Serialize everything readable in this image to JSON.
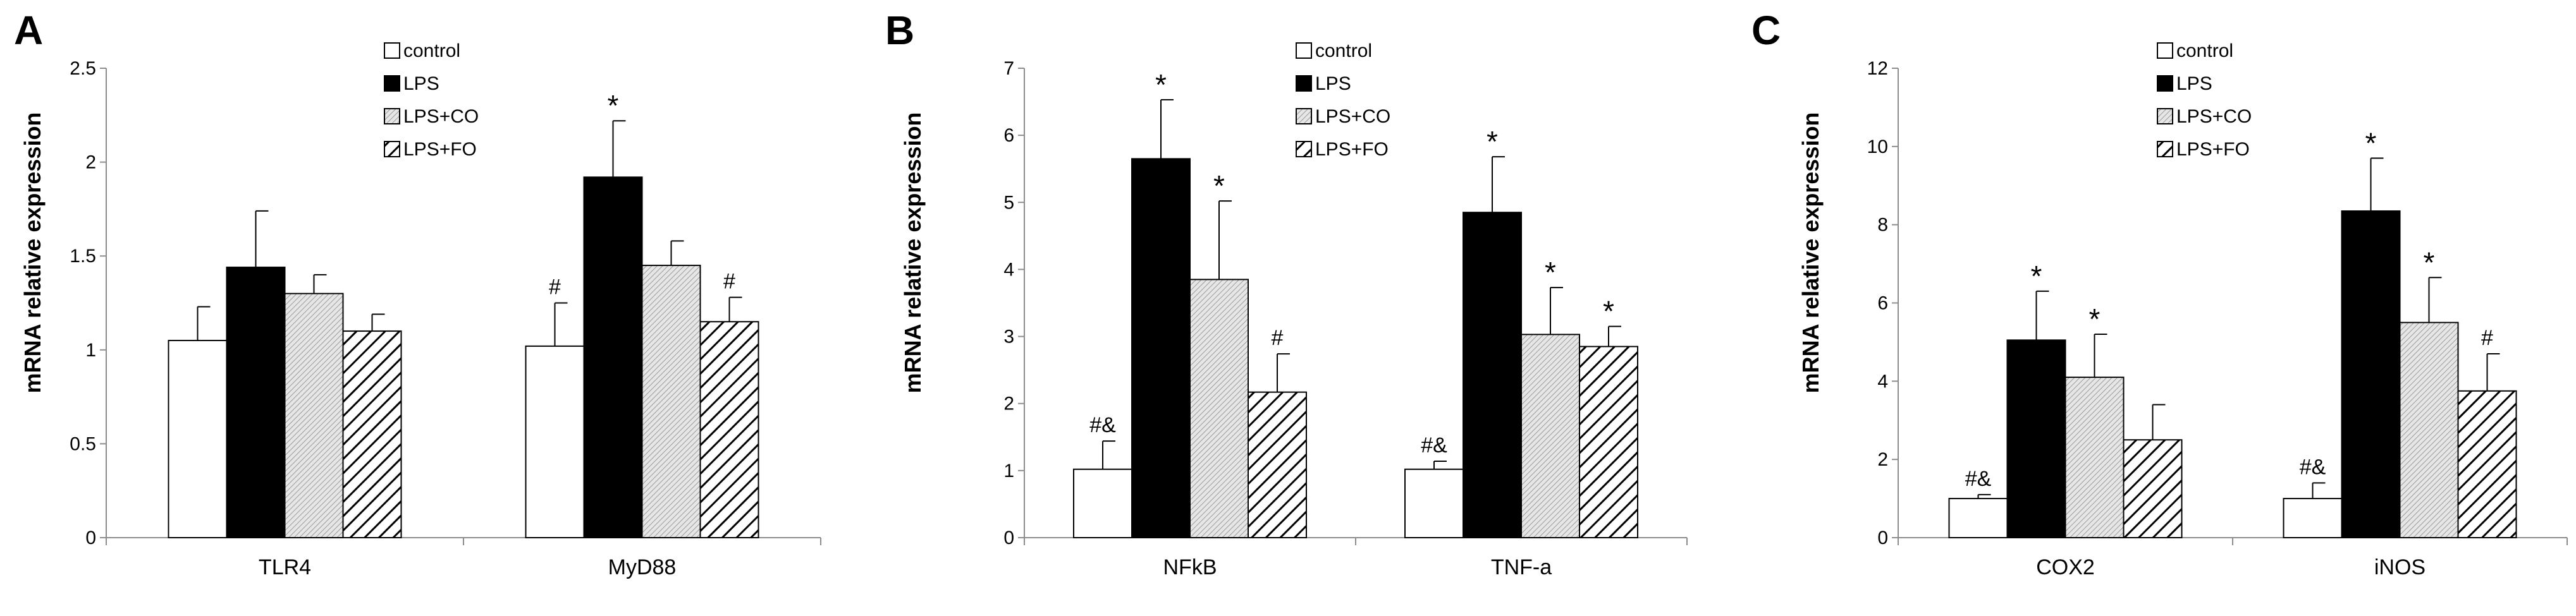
{
  "figure": {
    "y_axis_title": "mRNA relative expression"
  },
  "colors": {
    "control": "#ffffff",
    "LPS": "#000000",
    "LPS+CO": "#d0d0d0",
    "LPS+FO": "#ffffff",
    "axis": "#8c8c8c",
    "stroke": "#000000"
  },
  "legend": [
    "control",
    "LPS",
    "LPS+CO",
    "LPS+FO"
  ],
  "chart_data": [
    {
      "panel": "A",
      "type": "bar",
      "ylabel": "mRNA relative expression",
      "ylim": [
        0,
        2.5
      ],
      "yticks": [
        "0",
        "0.5",
        "1",
        "1.5",
        "2",
        "2.5"
      ],
      "categories": [
        "TLR4",
        "MyD88"
      ],
      "series": [
        {
          "name": "control",
          "values": [
            1.05,
            1.02
          ],
          "errors": [
            0.18,
            0.23
          ],
          "annotations": [
            "",
            "#"
          ]
        },
        {
          "name": "LPS",
          "values": [
            1.44,
            1.92
          ],
          "errors": [
            0.3,
            0.3
          ],
          "annotations": [
            "",
            "*"
          ]
        },
        {
          "name": "LPS+CO",
          "values": [
            1.3,
            1.45
          ],
          "errors": [
            0.1,
            0.13
          ],
          "annotations": [
            "",
            ""
          ]
        },
        {
          "name": "LPS+FO",
          "values": [
            1.1,
            1.15
          ],
          "errors": [
            0.09,
            0.13
          ],
          "annotations": [
            "",
            "#"
          ]
        }
      ]
    },
    {
      "panel": "B",
      "type": "bar",
      "ylabel": "mRNA relative expression",
      "ylim": [
        0,
        7
      ],
      "yticks": [
        "0",
        "1",
        "2",
        "3",
        "4",
        "5",
        "6",
        "7"
      ],
      "categories": [
        "NFkB",
        "TNF-a"
      ],
      "series": [
        {
          "name": "control",
          "values": [
            1.02,
            1.02
          ],
          "errors": [
            0.42,
            0.12
          ],
          "annotations": [
            "#&",
            "#&"
          ]
        },
        {
          "name": "LPS",
          "values": [
            5.65,
            4.85
          ],
          "errors": [
            0.88,
            0.83
          ],
          "annotations": [
            "*",
            "*"
          ]
        },
        {
          "name": "LPS+CO",
          "values": [
            3.85,
            3.03
          ],
          "errors": [
            1.17,
            0.7
          ],
          "annotations": [
            "*",
            "*"
          ]
        },
        {
          "name": "LPS+FO",
          "values": [
            2.17,
            2.85
          ],
          "errors": [
            0.57,
            0.3
          ],
          "annotations": [
            "#",
            "*"
          ]
        }
      ]
    },
    {
      "panel": "C",
      "type": "bar",
      "ylabel": "mRNA relative expression",
      "ylim": [
        0,
        12
      ],
      "yticks": [
        "0",
        "2",
        "4",
        "6",
        "8",
        "10",
        "12"
      ],
      "categories": [
        "COX2",
        "iNOS"
      ],
      "series": [
        {
          "name": "control",
          "values": [
            1.0,
            1.0
          ],
          "errors": [
            0.1,
            0.4
          ],
          "annotations": [
            "#&",
            "#&"
          ]
        },
        {
          "name": "LPS",
          "values": [
            5.05,
            8.35
          ],
          "errors": [
            1.25,
            1.35
          ],
          "annotations": [
            "*",
            "*"
          ]
        },
        {
          "name": "LPS+CO",
          "values": [
            4.1,
            5.5
          ],
          "errors": [
            1.1,
            1.15
          ],
          "annotations": [
            "*",
            "*"
          ]
        },
        {
          "name": "LPS+FO",
          "values": [
            2.5,
            3.75
          ],
          "errors": [
            0.9,
            0.95
          ],
          "annotations": [
            "",
            "#"
          ]
        }
      ]
    }
  ]
}
